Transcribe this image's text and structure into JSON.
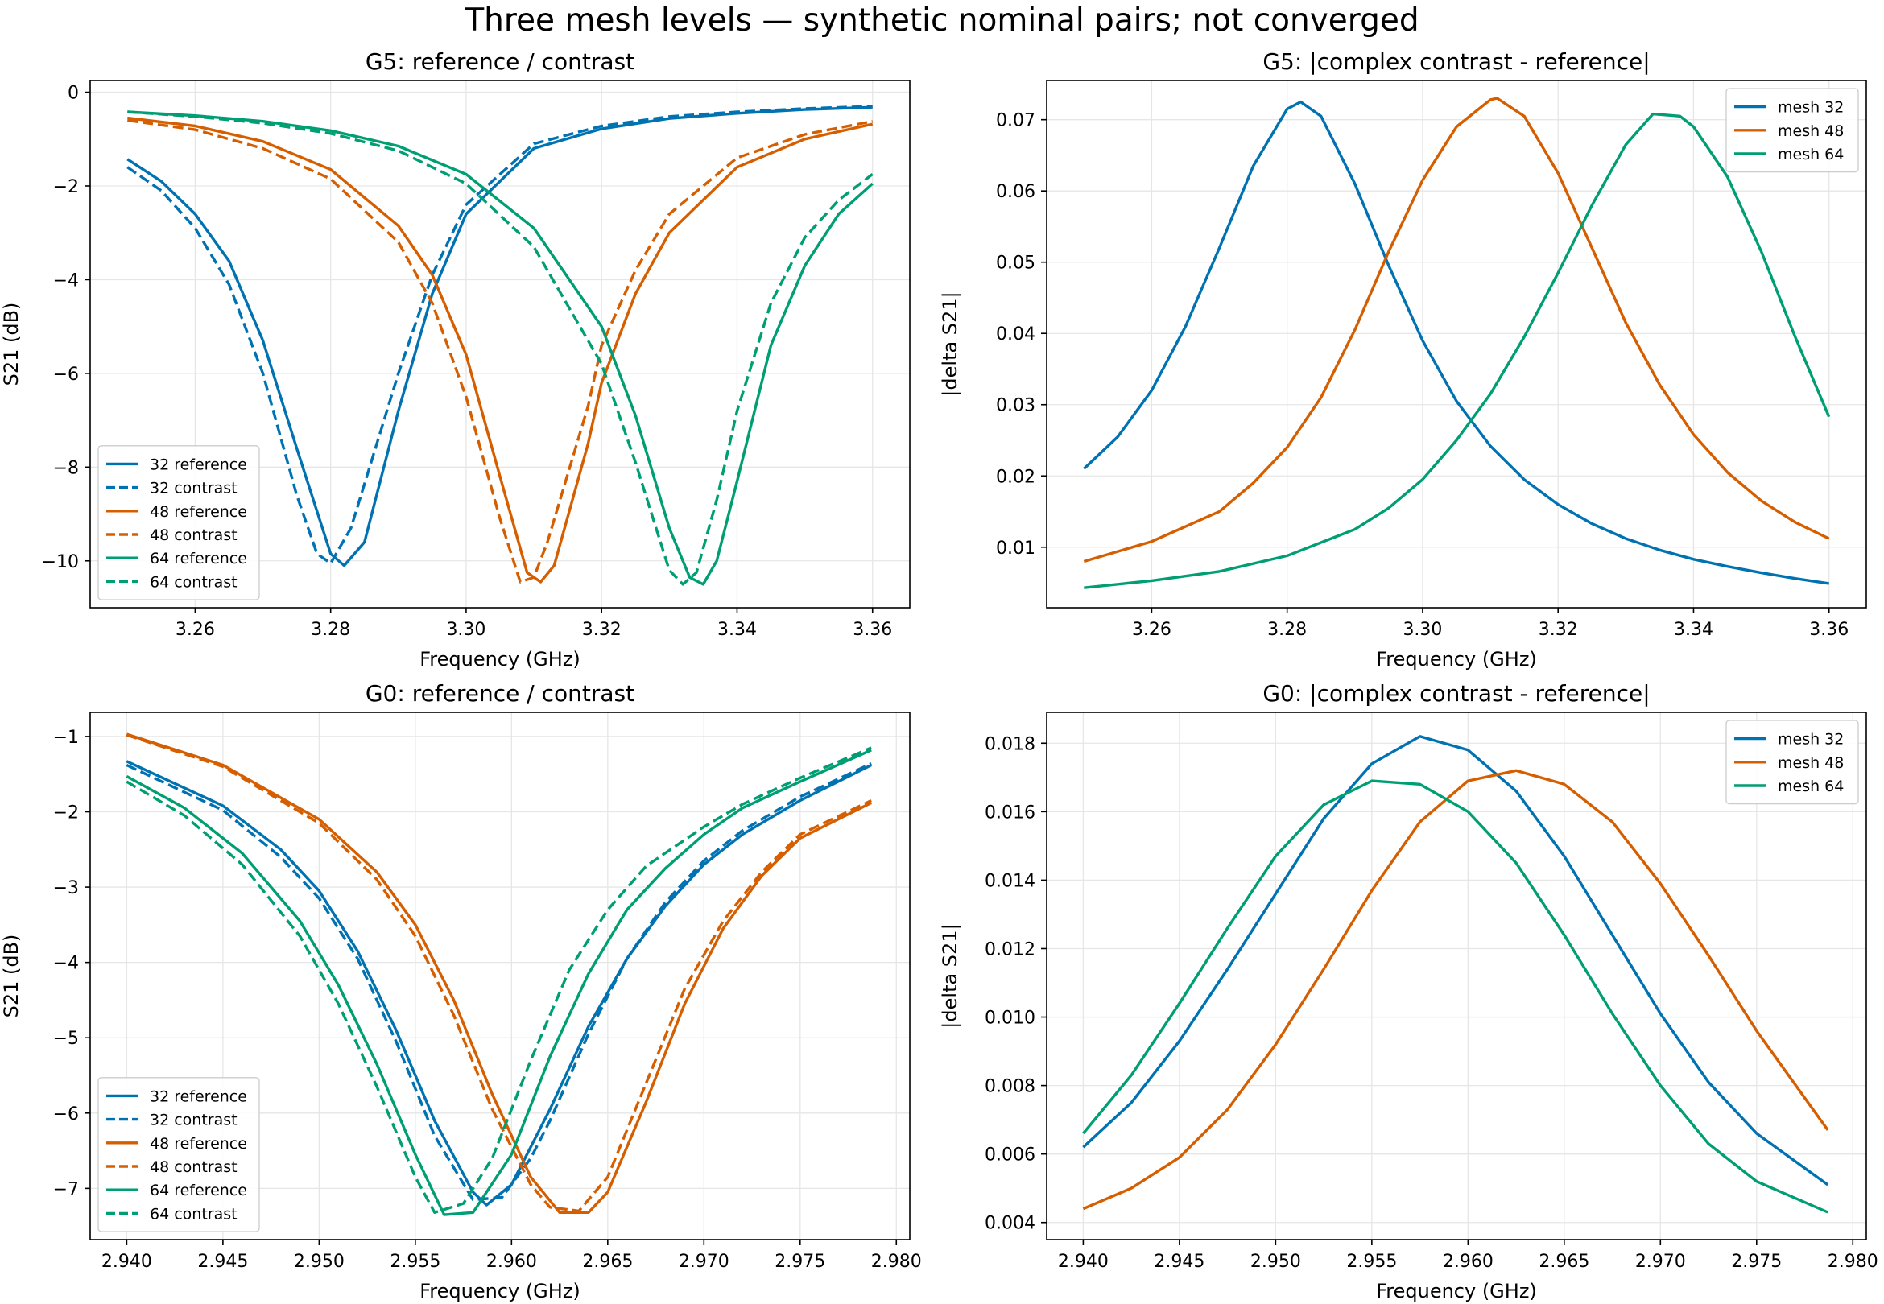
{
  "figure": {
    "suptitle": "Three mesh levels — synthetic nominal pairs; not converged"
  },
  "colors": {
    "mesh32": "#0072B2",
    "mesh48": "#D55E00",
    "mesh64": "#009E73",
    "grid": "#e6e6e6"
  },
  "chart_data": [
    {
      "id": "g5_s21",
      "type": "line",
      "title": "G5: reference / contrast",
      "xlabel": "Frequency (GHz)",
      "ylabel": "S21 (dB)",
      "xlim": [
        3.2445,
        3.3655
      ],
      "ylim": [
        -11.0,
        0.25
      ],
      "xticks": [
        3.26,
        3.28,
        3.3,
        3.32,
        3.34,
        3.36
      ],
      "xtick_labels": [
        "3.26",
        "3.28",
        "3.30",
        "3.32",
        "3.34",
        "3.36"
      ],
      "yticks": [
        0,
        -2,
        -4,
        -6,
        -8,
        -10
      ],
      "ytick_labels": [
        "0",
        "−2",
        "−4",
        "−6",
        "−8",
        "−10"
      ],
      "grid": true,
      "legend_position": "lower-left",
      "series": [
        {
          "name": "32 reference",
          "color_key": "mesh32",
          "dash": false,
          "x": [
            3.25,
            3.255,
            3.26,
            3.265,
            3.27,
            3.275,
            3.28,
            3.282,
            3.285,
            3.29,
            3.295,
            3.3,
            3.31,
            3.32,
            3.33,
            3.34,
            3.35,
            3.36
          ],
          "y": [
            -1.43,
            -1.9,
            -2.6,
            -3.6,
            -5.3,
            -7.6,
            -9.85,
            -10.1,
            -9.6,
            -6.8,
            -4.3,
            -2.6,
            -1.2,
            -0.78,
            -0.56,
            -0.45,
            -0.37,
            -0.32
          ]
        },
        {
          "name": "32 contrast",
          "color_key": "mesh32",
          "dash": true,
          "x": [
            3.25,
            3.255,
            3.26,
            3.265,
            3.27,
            3.275,
            3.278,
            3.28,
            3.283,
            3.29,
            3.295,
            3.3,
            3.31,
            3.32,
            3.33,
            3.34,
            3.35,
            3.36
          ],
          "y": [
            -1.6,
            -2.1,
            -2.9,
            -4.1,
            -6.0,
            -8.6,
            -9.85,
            -10.05,
            -9.3,
            -6.0,
            -3.9,
            -2.4,
            -1.1,
            -0.72,
            -0.52,
            -0.42,
            -0.35,
            -0.3
          ]
        },
        {
          "name": "48 reference",
          "color_key": "mesh48",
          "dash": false,
          "x": [
            3.25,
            3.26,
            3.27,
            3.28,
            3.29,
            3.295,
            3.3,
            3.305,
            3.309,
            3.311,
            3.313,
            3.318,
            3.32,
            3.325,
            3.33,
            3.34,
            3.35,
            3.36
          ],
          "y": [
            -0.55,
            -0.72,
            -1.05,
            -1.65,
            -2.85,
            -3.9,
            -5.6,
            -8.2,
            -10.25,
            -10.45,
            -10.1,
            -7.5,
            -6.2,
            -4.3,
            -3.0,
            -1.6,
            -1.0,
            -0.68
          ]
        },
        {
          "name": "48 contrast",
          "color_key": "mesh48",
          "dash": true,
          "x": [
            3.25,
            3.26,
            3.27,
            3.28,
            3.29,
            3.295,
            3.3,
            3.305,
            3.308,
            3.31,
            3.312,
            3.318,
            3.32,
            3.325,
            3.33,
            3.34,
            3.35,
            3.36
          ],
          "y": [
            -0.6,
            -0.8,
            -1.2,
            -1.85,
            -3.2,
            -4.5,
            -6.5,
            -9.1,
            -10.45,
            -10.35,
            -9.6,
            -6.7,
            -5.4,
            -3.8,
            -2.6,
            -1.4,
            -0.9,
            -0.62
          ]
        },
        {
          "name": "64 reference",
          "color_key": "mesh64",
          "dash": false,
          "x": [
            3.25,
            3.26,
            3.27,
            3.28,
            3.29,
            3.3,
            3.31,
            3.32,
            3.325,
            3.33,
            3.333,
            3.335,
            3.337,
            3.34,
            3.345,
            3.35,
            3.355,
            3.36
          ],
          "y": [
            -0.42,
            -0.5,
            -0.62,
            -0.82,
            -1.15,
            -1.75,
            -2.9,
            -5.0,
            -6.9,
            -9.3,
            -10.35,
            -10.5,
            -10.0,
            -8.3,
            -5.4,
            -3.7,
            -2.6,
            -1.95
          ]
        },
        {
          "name": "64 contrast",
          "color_key": "mesh64",
          "dash": true,
          "x": [
            3.25,
            3.26,
            3.27,
            3.28,
            3.29,
            3.3,
            3.31,
            3.32,
            3.325,
            3.33,
            3.332,
            3.334,
            3.337,
            3.34,
            3.345,
            3.35,
            3.355,
            3.36
          ],
          "y": [
            -0.42,
            -0.52,
            -0.66,
            -0.88,
            -1.25,
            -1.95,
            -3.3,
            -5.8,
            -7.9,
            -10.2,
            -10.5,
            -10.25,
            -8.7,
            -6.8,
            -4.5,
            -3.1,
            -2.3,
            -1.75
          ]
        }
      ]
    },
    {
      "id": "g5_delta",
      "type": "line",
      "title": "G5: |complex contrast - reference|",
      "xlabel": "Frequency (GHz)",
      "ylabel": "|delta S21|",
      "xlim": [
        3.2445,
        3.3655
      ],
      "ylim": [
        0.0015,
        0.0755
      ],
      "xticks": [
        3.26,
        3.28,
        3.3,
        3.32,
        3.34,
        3.36
      ],
      "xtick_labels": [
        "3.26",
        "3.28",
        "3.30",
        "3.32",
        "3.34",
        "3.36"
      ],
      "yticks": [
        0.01,
        0.02,
        0.03,
        0.04,
        0.05,
        0.06,
        0.07
      ],
      "ytick_labels": [
        "0.01",
        "0.02",
        "0.03",
        "0.04",
        "0.05",
        "0.06",
        "0.07"
      ],
      "grid": true,
      "legend_position": "upper-right",
      "series": [
        {
          "name": "mesh 32",
          "color_key": "mesh32",
          "dash": false,
          "x": [
            3.25,
            3.255,
            3.26,
            3.265,
            3.27,
            3.275,
            3.28,
            3.282,
            3.285,
            3.29,
            3.295,
            3.3,
            3.305,
            3.31,
            3.315,
            3.32,
            3.325,
            3.33,
            3.335,
            3.34,
            3.345,
            3.35,
            3.355,
            3.36
          ],
          "y": [
            0.021,
            0.0255,
            0.032,
            0.041,
            0.052,
            0.0635,
            0.0715,
            0.0725,
            0.0705,
            0.061,
            0.0495,
            0.039,
            0.0305,
            0.0242,
            0.0195,
            0.016,
            0.0133,
            0.0112,
            0.0096,
            0.0083,
            0.0073,
            0.0064,
            0.0056,
            0.0049
          ]
        },
        {
          "name": "mesh 48",
          "color_key": "mesh48",
          "dash": false,
          "x": [
            3.25,
            3.26,
            3.27,
            3.275,
            3.28,
            3.285,
            3.29,
            3.295,
            3.3,
            3.305,
            3.31,
            3.311,
            3.315,
            3.32,
            3.325,
            3.33,
            3.335,
            3.34,
            3.345,
            3.35,
            3.355,
            3.36
          ],
          "y": [
            0.008,
            0.0108,
            0.015,
            0.019,
            0.024,
            0.031,
            0.0405,
            0.0515,
            0.0615,
            0.069,
            0.0728,
            0.073,
            0.0705,
            0.0625,
            0.052,
            0.0415,
            0.0328,
            0.0258,
            0.0205,
            0.0165,
            0.0135,
            0.0112
          ]
        },
        {
          "name": "mesh 64",
          "color_key": "mesh64",
          "dash": false,
          "x": [
            3.25,
            3.26,
            3.27,
            3.28,
            3.29,
            3.295,
            3.3,
            3.305,
            3.31,
            3.315,
            3.32,
            3.325,
            3.33,
            3.334,
            3.338,
            3.34,
            3.345,
            3.35,
            3.355,
            3.36
          ],
          "y": [
            0.0043,
            0.0053,
            0.0066,
            0.0088,
            0.0125,
            0.0155,
            0.0195,
            0.025,
            0.0315,
            0.0395,
            0.0485,
            0.058,
            0.0665,
            0.0708,
            0.0705,
            0.069,
            0.062,
            0.0515,
            0.0395,
            0.0283
          ]
        }
      ]
    },
    {
      "id": "g0_s21",
      "type": "line",
      "title": "G0: reference / contrast",
      "xlabel": "Frequency (GHz)",
      "ylabel": "S21 (dB)",
      "xlim": [
        2.9381,
        2.9807
      ],
      "ylim": [
        -7.68,
        -0.68
      ],
      "xticks": [
        2.94,
        2.945,
        2.95,
        2.955,
        2.96,
        2.965,
        2.97,
        2.975,
        2.98
      ],
      "xtick_labels": [
        "2.940",
        "2.945",
        "2.950",
        "2.955",
        "2.960",
        "2.965",
        "2.970",
        "2.975",
        "2.980"
      ],
      "yticks": [
        -1,
        -2,
        -3,
        -4,
        -5,
        -6,
        -7
      ],
      "ytick_labels": [
        "−1",
        "−2",
        "−3",
        "−4",
        "−5",
        "−6",
        "−7"
      ],
      "grid": true,
      "legend_position": "lower-left",
      "series": [
        {
          "name": "32 reference",
          "color_key": "mesh32",
          "dash": false,
          "x": [
            2.94,
            2.945,
            2.948,
            2.95,
            2.952,
            2.954,
            2.956,
            2.958,
            2.9587,
            2.96,
            2.962,
            2.964,
            2.966,
            2.968,
            2.97,
            2.972,
            2.975,
            2.9787
          ],
          "y": [
            -1.33,
            -1.92,
            -2.5,
            -3.05,
            -3.85,
            -4.9,
            -6.1,
            -7.05,
            -7.22,
            -6.95,
            -5.95,
            -4.85,
            -3.95,
            -3.25,
            -2.7,
            -2.3,
            -1.85,
            -1.38
          ]
        },
        {
          "name": "32 contrast",
          "color_key": "mesh32",
          "dash": true,
          "x": [
            2.94,
            2.945,
            2.948,
            2.95,
            2.952,
            2.954,
            2.956,
            2.958,
            2.9595,
            2.961,
            2.962,
            2.964,
            2.966,
            2.968,
            2.97,
            2.972,
            2.975,
            2.9787
          ],
          "y": [
            -1.38,
            -1.98,
            -2.6,
            -3.15,
            -3.95,
            -5.05,
            -6.3,
            -7.15,
            -7.12,
            -6.6,
            -6.1,
            -4.95,
            -3.95,
            -3.2,
            -2.65,
            -2.25,
            -1.8,
            -1.36
          ]
        },
        {
          "name": "48 reference",
          "color_key": "mesh48",
          "dash": false,
          "x": [
            2.94,
            2.945,
            2.95,
            2.953,
            2.955,
            2.957,
            2.959,
            2.961,
            2.9625,
            2.964,
            2.965,
            2.967,
            2.969,
            2.971,
            2.973,
            2.975,
            2.9787
          ],
          "y": [
            -0.97,
            -1.38,
            -2.1,
            -2.8,
            -3.5,
            -4.5,
            -5.75,
            -6.85,
            -7.32,
            -7.32,
            -7.05,
            -5.85,
            -4.55,
            -3.55,
            -2.85,
            -2.35,
            -1.88
          ]
        },
        {
          "name": "48 contrast",
          "color_key": "mesh48",
          "dash": true,
          "x": [
            2.94,
            2.945,
            2.95,
            2.953,
            2.955,
            2.957,
            2.959,
            2.961,
            2.962,
            2.9635,
            2.965,
            2.967,
            2.969,
            2.971,
            2.973,
            2.975,
            2.9787
          ],
          "y": [
            -0.98,
            -1.4,
            -2.15,
            -2.9,
            -3.65,
            -4.7,
            -5.95,
            -6.95,
            -7.25,
            -7.3,
            -6.85,
            -5.6,
            -4.35,
            -3.45,
            -2.8,
            -2.3,
            -1.85
          ]
        },
        {
          "name": "64 reference",
          "color_key": "mesh64",
          "dash": false,
          "x": [
            2.94,
            2.943,
            2.946,
            2.949,
            2.951,
            2.953,
            2.955,
            2.9565,
            2.958,
            2.96,
            2.962,
            2.964,
            2.966,
            2.968,
            2.97,
            2.972,
            2.975,
            2.9787
          ],
          "y": [
            -1.53,
            -1.95,
            -2.55,
            -3.45,
            -4.3,
            -5.35,
            -6.55,
            -7.35,
            -7.32,
            -6.55,
            -5.25,
            -4.15,
            -3.3,
            -2.75,
            -2.3,
            -1.95,
            -1.6,
            -1.18
          ]
        },
        {
          "name": "64 contrast",
          "color_key": "mesh64",
          "dash": true,
          "x": [
            2.94,
            2.943,
            2.946,
            2.949,
            2.951,
            2.953,
            2.955,
            2.956,
            2.9575,
            2.959,
            2.961,
            2.963,
            2.965,
            2.967,
            2.97,
            2.972,
            2.975,
            2.9787
          ],
          "y": [
            -1.6,
            -2.05,
            -2.7,
            -3.65,
            -4.55,
            -5.65,
            -6.85,
            -7.32,
            -7.2,
            -6.6,
            -5.3,
            -4.1,
            -3.3,
            -2.72,
            -2.2,
            -1.9,
            -1.55,
            -1.15
          ]
        }
      ]
    },
    {
      "id": "g0_delta",
      "type": "line",
      "title": "G0: |complex contrast - reference|",
      "xlabel": "Frequency (GHz)",
      "ylabel": "|delta S21|",
      "xlim": [
        2.9381,
        2.9807
      ],
      "ylim": [
        0.0035,
        0.0189
      ],
      "xticks": [
        2.94,
        2.945,
        2.95,
        2.955,
        2.96,
        2.965,
        2.97,
        2.975,
        2.98
      ],
      "xtick_labels": [
        "2.940",
        "2.945",
        "2.950",
        "2.955",
        "2.960",
        "2.965",
        "2.970",
        "2.975",
        "2.980"
      ],
      "yticks": [
        0.004,
        0.006,
        0.008,
        0.01,
        0.012,
        0.014,
        0.016,
        0.018
      ],
      "ytick_labels": [
        "0.004",
        "0.006",
        "0.008",
        "0.010",
        "0.012",
        "0.014",
        "0.016",
        "0.018"
      ],
      "grid": true,
      "legend_position": "upper-right",
      "series": [
        {
          "name": "mesh 32",
          "color_key": "mesh32",
          "dash": false,
          "x": [
            2.94,
            2.9425,
            2.945,
            2.9475,
            2.95,
            2.9525,
            2.955,
            2.9575,
            2.96,
            2.9625,
            2.965,
            2.9675,
            2.97,
            2.9725,
            2.975,
            2.9787
          ],
          "y": [
            0.0062,
            0.0075,
            0.0093,
            0.0114,
            0.0136,
            0.0158,
            0.0174,
            0.0182,
            0.0178,
            0.0166,
            0.0147,
            0.0124,
            0.0101,
            0.0081,
            0.0066,
            0.0051
          ]
        },
        {
          "name": "mesh 48",
          "color_key": "mesh48",
          "dash": false,
          "x": [
            2.94,
            2.9425,
            2.945,
            2.9475,
            2.95,
            2.9525,
            2.955,
            2.9575,
            2.96,
            2.9625,
            2.965,
            2.9675,
            2.97,
            2.9725,
            2.975,
            2.9787
          ],
          "y": [
            0.0044,
            0.005,
            0.0059,
            0.0073,
            0.0092,
            0.0114,
            0.0137,
            0.0157,
            0.0169,
            0.0172,
            0.0168,
            0.0157,
            0.0139,
            0.0118,
            0.0096,
            0.0067
          ]
        },
        {
          "name": "mesh 64",
          "color_key": "mesh64",
          "dash": false,
          "x": [
            2.94,
            2.9425,
            2.945,
            2.9475,
            2.95,
            2.9525,
            2.955,
            2.9575,
            2.96,
            2.9625,
            2.965,
            2.9675,
            2.97,
            2.9725,
            2.975,
            2.9787
          ],
          "y": [
            0.0066,
            0.0083,
            0.0104,
            0.0126,
            0.0147,
            0.0162,
            0.0169,
            0.0168,
            0.016,
            0.0145,
            0.0124,
            0.0101,
            0.008,
            0.0063,
            0.0052,
            0.0043
          ]
        }
      ]
    }
  ]
}
